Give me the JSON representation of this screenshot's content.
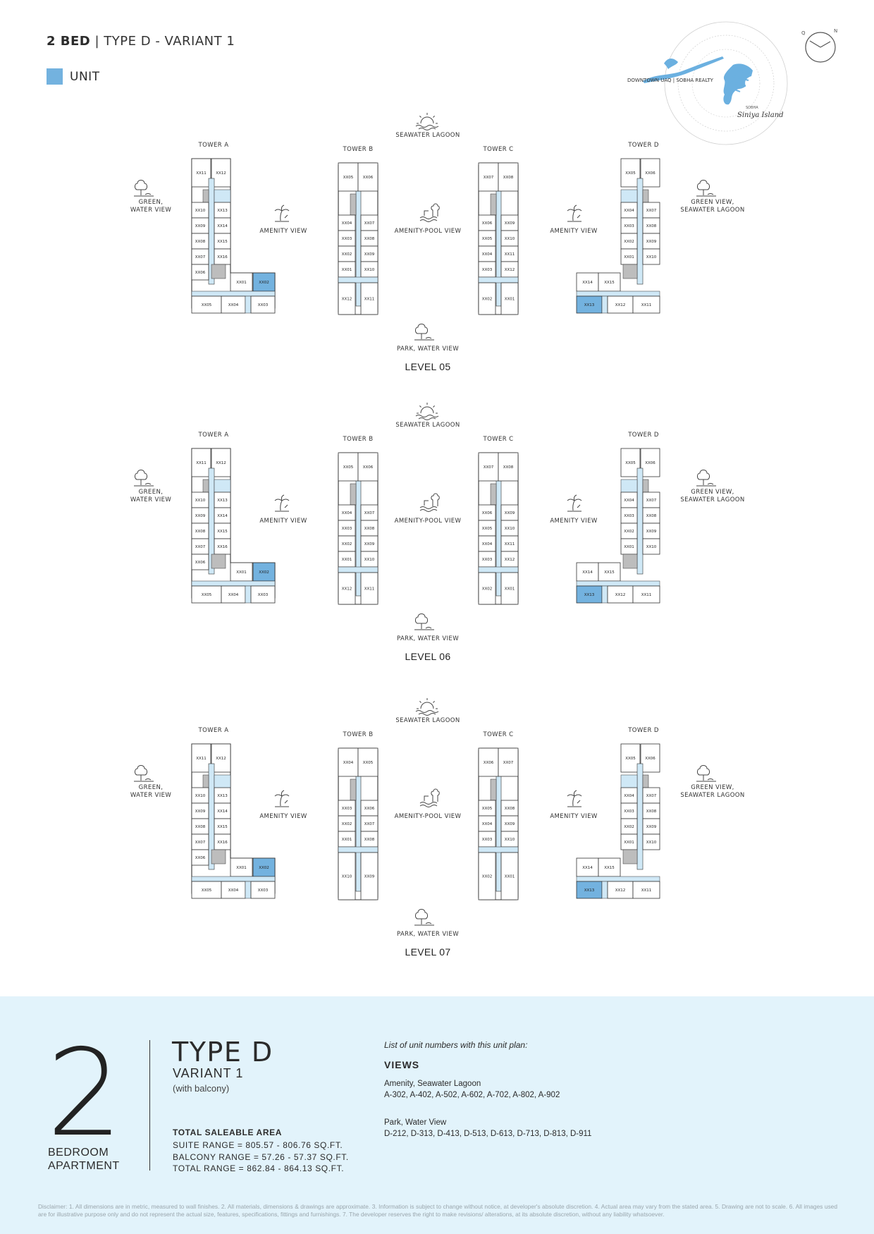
{
  "header": {
    "bed": "2 BED",
    "sep": "|",
    "type": "TYPE D - VARIANT 1"
  },
  "legend": {
    "label": "UNIT",
    "color": "#73b2df"
  },
  "keymap": {
    "label_left": "DOWNTOWN UAQ | SOBHA REALTY",
    "brand_small": "SOBHA",
    "brand_script": "Siniya Island",
    "compass_q": "Q",
    "compass_n": "N"
  },
  "colors": {
    "unit_highlight": "#73b2df",
    "corridor": "#cfe8f6",
    "footer_bg": "#e2f3fb",
    "core": "#bdbdbd"
  },
  "levels": [
    {
      "name": "LEVEL 05",
      "towers": [
        "TOWER A",
        "TOWER B",
        "TOWER C",
        "TOWER D"
      ],
      "views": {
        "top": "SEAWATER LAGOON",
        "bottom": "PARK, WATER VIEW",
        "left": "GREEN,\nWATER VIEW",
        "amenity_left": "AMENITY VIEW",
        "pool": "AMENITY-POOL VIEW",
        "amenity_right": "AMENITY VIEW",
        "right": "GREEN VIEW,\nSEAWATER LAGOON"
      }
    },
    {
      "name": "LEVEL 06",
      "towers": [
        "TOWER A",
        "TOWER B",
        "TOWER C",
        "TOWER D"
      ],
      "views": {
        "top": "SEAWATER LAGOON",
        "bottom": "PARK, WATER VIEW",
        "left": "GREEN,\nWATER VIEW",
        "amenity_left": "AMENITY VIEW",
        "pool": "AMENITY-POOL VIEW",
        "amenity_right": "AMENITY VIEW",
        "right": "GREEN VIEW,\nSEAWATER LAGOON"
      }
    },
    {
      "name": "LEVEL 07",
      "towers": [
        "TOWER A",
        "TOWER B",
        "TOWER C",
        "TOWER D"
      ],
      "views": {
        "top": "SEAWATER LAGOON",
        "bottom": "PARK, WATER VIEW",
        "left": "GREEN,\nWATER VIEW",
        "amenity_left": "AMENITY VIEW",
        "pool": "AMENITY-POOL VIEW",
        "amenity_right": "AMENITY VIEW",
        "right": "GREEN VIEW,\nSEAWATER LAGOON"
      }
    }
  ],
  "plans": {
    "A": {
      "units": [
        "XX11",
        "XX12",
        "XX10",
        "XX13",
        "XX09",
        "XX14",
        "XX08",
        "XX15",
        "XX07",
        "XX16",
        "XX06",
        "XX01",
        "XX02",
        "XX05",
        "XX04",
        "XX03"
      ],
      "highlight": "XX02"
    },
    "B": {
      "units": [
        "XX05",
        "XX06",
        "XX04",
        "XX07",
        "XX03",
        "XX08",
        "XX02",
        "XX09",
        "XX01",
        "XX10",
        "XX12",
        "XX11"
      ]
    },
    "C": {
      "units": [
        "XX07",
        "XX08",
        "XX06",
        "XX09",
        "XX05",
        "XX10",
        "XX04",
        "XX11",
        "XX03",
        "XX12",
        "XX02",
        "XX01"
      ]
    },
    "D": {
      "units": [
        "XX05",
        "XX06",
        "XX04",
        "XX07",
        "XX03",
        "XX08",
        "XX02",
        "XX09",
        "XX01",
        "XX10",
        "XX14",
        "XX15",
        "XX13",
        "XX12",
        "XX11"
      ],
      "highlight": "XX13"
    },
    "B7": {
      "units": [
        "XX04",
        "XX05",
        "XX03",
        "XX06",
        "XX02",
        "XX07",
        "XX01",
        "XX08",
        "XX10",
        "XX09"
      ]
    },
    "C7": {
      "units": [
        "XX06",
        "XX07",
        "XX05",
        "XX08",
        "XX04",
        "XX09",
        "XX03",
        "XX10",
        "XX02",
        "XX01"
      ]
    }
  },
  "footer": {
    "number": "2",
    "bedroom_line1": "BEDROOM",
    "bedroom_line2": "APARTMENT",
    "type": "TYPE D",
    "variant": "VARIANT 1",
    "balcony_note": "(with balcony)",
    "area_title": "TOTAL SALEABLE AREA",
    "suite_range": "SUITE RANGE = 805.57 - 806.76 SQ.FT.",
    "balcony_range": "BALCONY RANGE = 57.26 - 57.37 SQ.FT.",
    "total_range": "TOTAL RANGE = 862.84 - 864.13 SQ.FT.",
    "list_title": "List of unit numbers with this unit plan:",
    "views_title": "VIEWS",
    "view_groups": [
      {
        "name": "Amenity, Seawater Lagoon",
        "units": "A-302, A-402, A-502, A-602, A-702, A-802, A-902"
      },
      {
        "name": "Park, Water View",
        "units": "D-212, D-313, D-413, D-513, D-613, D-713, D-813, D-911"
      }
    ],
    "disclaimer": "Disclaimer: 1. All dimensions are in metric, measured to wall finishes. 2. All materials, dimensions & drawings are approximate. 3. Information is subject to change without notice, at developer's absolute discretion. 4. Actual area may vary from the stated area. 5. Drawing are not to scale. 6. All images used are for illustrative purpose only and do not represent the actual size, features, specifications, fittings and furnishings. 7. The developer reserves the right to make revisions/ alterations, at its absolute discretion, without any liability whatsoever."
  }
}
